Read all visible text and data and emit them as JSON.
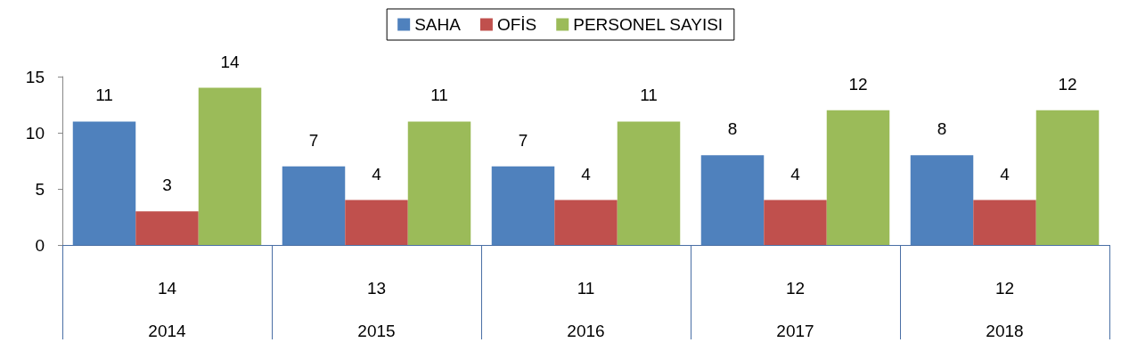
{
  "chart_data": {
    "type": "bar",
    "categories": [
      "2014",
      "2015",
      "2016",
      "2017",
      "2018"
    ],
    "series": [
      {
        "name": "SAHA",
        "color": "#4f81bd",
        "values": [
          11,
          7,
          7,
          8,
          8
        ]
      },
      {
        "name": "OFİS",
        "color": "#c0504d",
        "values": [
          3,
          4,
          4,
          4,
          4
        ]
      },
      {
        "name": "PERSONEL SAYISI",
        "color": "#9bbb59",
        "values": [
          14,
          11,
          11,
          12,
          12
        ]
      }
    ],
    "ylim": [
      0,
      15
    ],
    "yticks": [
      0,
      5,
      10,
      15
    ],
    "grid": false,
    "legend": "top",
    "data_labels": true,
    "annotations": [
      "14",
      "13",
      "11",
      "12",
      "12"
    ]
  }
}
